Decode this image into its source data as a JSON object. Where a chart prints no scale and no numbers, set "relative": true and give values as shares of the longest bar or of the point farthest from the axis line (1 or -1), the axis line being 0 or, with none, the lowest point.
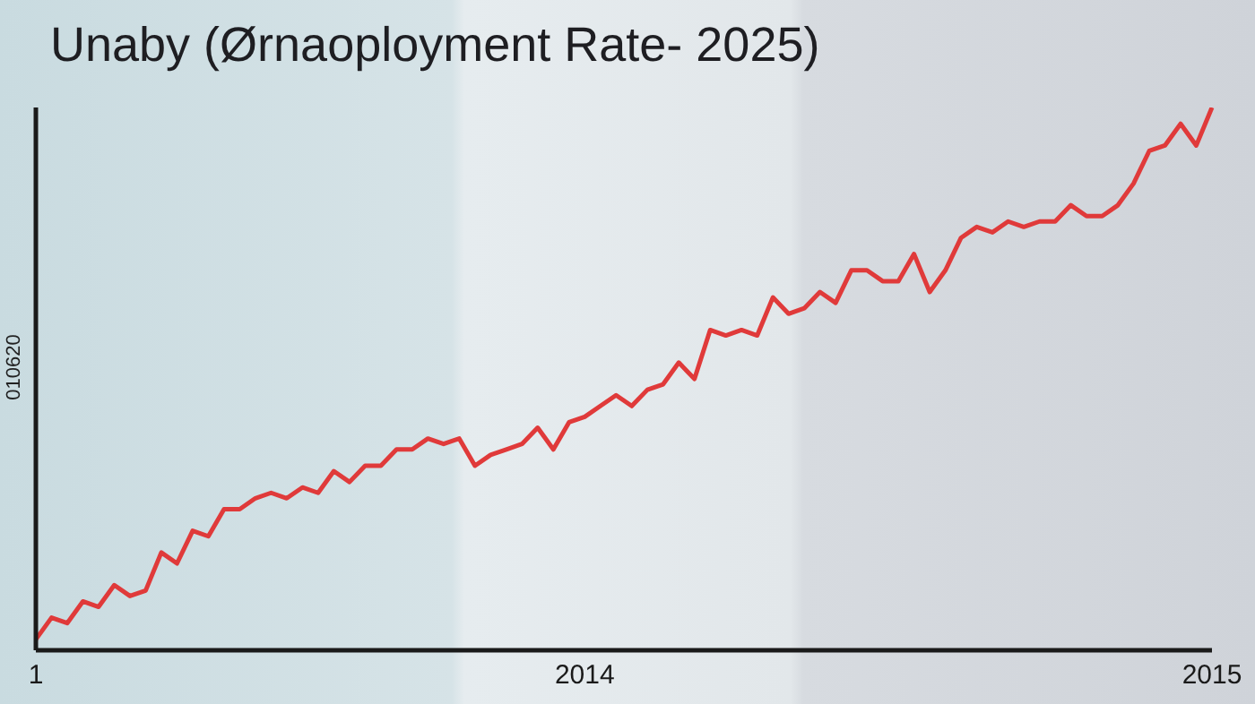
{
  "chart_data": {
    "type": "line",
    "title": "Unaby (Ørnaoployment Rate- 2025)",
    "ylabel": "010620",
    "relative": true,
    "categories": [
      "1",
      null,
      null,
      null,
      null,
      null,
      null,
      null,
      null,
      null,
      null,
      null,
      null,
      null,
      null,
      null,
      null,
      null,
      null,
      null,
      null,
      null,
      null,
      null,
      null,
      null,
      null,
      null,
      null,
      null,
      null,
      null,
      null,
      null,
      null,
      "2014",
      null,
      null,
      null,
      null,
      null,
      null,
      null,
      null,
      null,
      null,
      null,
      null,
      null,
      null,
      null,
      null,
      null,
      null,
      null,
      null,
      null,
      null,
      null,
      null,
      null,
      null,
      null,
      null,
      null,
      null,
      null,
      null,
      null,
      null,
      null,
      null,
      null,
      null,
      null,
      "2015"
    ],
    "series": [
      {
        "color": "#e03a3a",
        "values": [
          0.02,
          0.06,
          0.05,
          0.09,
          0.08,
          0.12,
          0.1,
          0.11,
          0.18,
          0.16,
          0.22,
          0.21,
          0.26,
          0.26,
          0.28,
          0.29,
          0.28,
          0.3,
          0.29,
          0.33,
          0.31,
          0.34,
          0.34,
          0.37,
          0.37,
          0.39,
          0.38,
          0.39,
          0.34,
          0.36,
          0.37,
          0.38,
          0.41,
          0.37,
          0.42,
          0.43,
          0.45,
          0.47,
          0.45,
          0.48,
          0.49,
          0.53,
          0.5,
          0.59,
          0.58,
          0.59,
          0.58,
          0.65,
          0.62,
          0.63,
          0.66,
          0.64,
          0.7,
          0.7,
          0.68,
          0.68,
          0.73,
          0.66,
          0.7,
          0.76,
          0.78,
          0.77,
          0.79,
          0.78,
          0.79,
          0.79,
          0.82,
          0.8,
          0.8,
          0.82,
          0.86,
          0.92,
          0.93,
          0.97,
          0.93,
          1
        ]
      }
    ],
    "grid": false,
    "legend": false,
    "marker": "none",
    "line_style": "solid"
  }
}
